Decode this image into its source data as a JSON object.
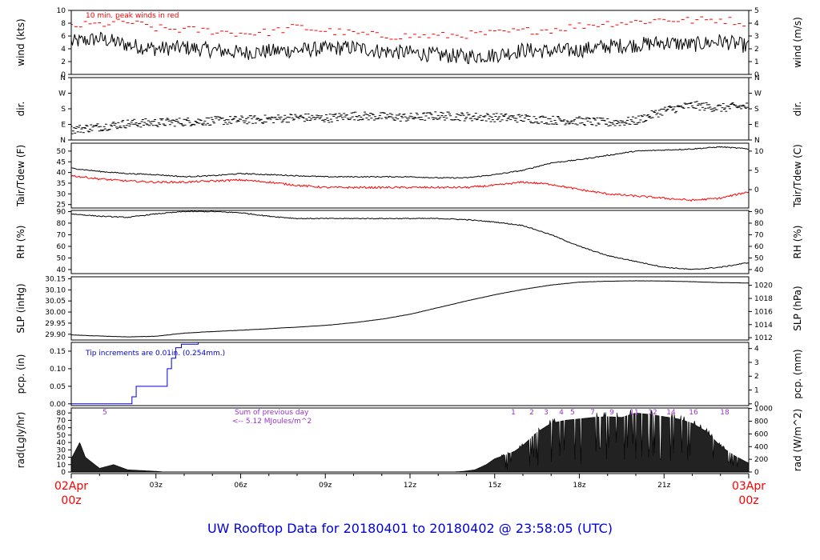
{
  "title": "UW Rooftop Data for 20180401  to  20180402 @ 23:58:05  (UTC)",
  "colors": {
    "data": "#000000",
    "peak": "#ff0000",
    "dewpoint": "#ff0000",
    "precip": "#0000dd",
    "annot_rad": "#9933cc",
    "axis_date": "#ff0000",
    "title": "#0000dd"
  },
  "x_axis": {
    "start_label": [
      "02Apr",
      "00z"
    ],
    "end_label": [
      "03Apr",
      "00z"
    ],
    "ticks": [
      "03z",
      "06z",
      "09z",
      "12z",
      "15z",
      "18z",
      "21z"
    ]
  },
  "chart_data": [
    {
      "type": "line",
      "ylabel_left": "wind (kts)",
      "ylabel_right": "wind (m/s)",
      "ylim": [
        0,
        10
      ],
      "yticks_left": [
        0,
        2,
        4,
        6,
        8,
        10
      ],
      "yticks_right": [
        0,
        1,
        2,
        3,
        4,
        5
      ],
      "annotation": "10 min. peak winds in red",
      "series": [
        {
          "x": [
            0,
            1,
            2,
            3,
            4,
            5,
            6,
            7,
            8,
            9,
            10,
            11,
            12,
            13,
            14,
            15,
            16,
            17,
            18,
            19,
            20,
            21,
            22,
            23,
            24
          ],
          "values": [
            5.0,
            5.6,
            4.6,
            4.0,
            4.2,
            3.8,
            3.4,
            3.6,
            3.8,
            4.0,
            4.2,
            3.6,
            3.4,
            3.0,
            2.8,
            3.0,
            3.8,
            3.6,
            3.8,
            4.4,
            4.6,
            5.0,
            4.6,
            5.2,
            4.4
          ]
        },
        {
          "x": [
            0,
            1,
            2,
            3,
            4,
            5,
            6,
            7,
            8,
            9,
            10,
            11,
            12,
            13,
            14,
            15,
            16,
            17,
            18,
            19,
            20,
            21,
            22,
            23,
            24
          ],
          "values": [
            7.6,
            7.8,
            8.2,
            7.2,
            7.0,
            6.8,
            6.4,
            6.6,
            7.4,
            6.8,
            6.4,
            6.0,
            6.0,
            6.0,
            6.2,
            6.4,
            6.8,
            7.0,
            7.6,
            8.0,
            8.2,
            8.6,
            8.4,
            8.6,
            8.0
          ]
        }
      ]
    },
    {
      "type": "scatter",
      "ylabel_left": "dir.",
      "ylabel_right": "dir.",
      "ylim": [
        0,
        360
      ],
      "yticks_left": [
        "N",
        "E",
        "S",
        "W",
        "N"
      ],
      "yticks_right": [
        "N",
        "E",
        "S",
        "W",
        "N"
      ],
      "series": [
        {
          "x": [
            0,
            1,
            2,
            3,
            4,
            5,
            6,
            7,
            8,
            9,
            10,
            11,
            12,
            13,
            14,
            15,
            16,
            17,
            18,
            19,
            20,
            21,
            22,
            23,
            24
          ],
          "values": [
            60,
            75,
            95,
            100,
            105,
            110,
            115,
            120,
            130,
            125,
            140,
            135,
            130,
            140,
            135,
            130,
            125,
            115,
            110,
            100,
            110,
            170,
            200,
            185,
            195
          ]
        }
      ]
    },
    {
      "type": "line",
      "ylabel_left": "Tair/Tdew (F)",
      "ylabel_right": "Tair/Tdew (C)",
      "ylim": [
        23.4,
        53.7
      ],
      "yticks_left": [
        25,
        30,
        35,
        40,
        45,
        50
      ],
      "yticks_right": [
        0,
        5,
        10
      ],
      "series": [
        {
          "x": [
            0,
            1,
            2,
            3,
            4,
            5,
            6,
            7,
            8,
            9,
            10,
            11,
            12,
            13,
            14,
            15,
            16,
            17,
            18,
            19,
            20,
            21,
            22,
            23,
            24
          ],
          "values": [
            42,
            40.5,
            39.5,
            39,
            38,
            38.5,
            39.5,
            39,
            38.5,
            38,
            38,
            38,
            38,
            37.5,
            37.5,
            39,
            41,
            44.5,
            46,
            48,
            50,
            50.5,
            51,
            52,
            51
          ]
        },
        {
          "x": [
            0,
            1,
            2,
            3,
            4,
            5,
            6,
            7,
            8,
            9,
            10,
            11,
            12,
            13,
            14,
            15,
            16,
            17,
            18,
            19,
            20,
            21,
            22,
            23,
            24
          ],
          "values": [
            38.5,
            37,
            36,
            35.5,
            35.5,
            36,
            36.5,
            35.5,
            34,
            33,
            33,
            33,
            33,
            33,
            33,
            34,
            35.5,
            34.5,
            32,
            30,
            29,
            28,
            27,
            28,
            31
          ]
        }
      ]
    },
    {
      "type": "line",
      "ylabel_left": "RH (%)",
      "ylabel_right": "RH (%)",
      "ylim": [
        36.5,
        91
      ],
      "yticks_left": [
        40,
        50,
        60,
        70,
        80,
        90
      ],
      "yticks_right": [
        40,
        50,
        60,
        70,
        80,
        90
      ],
      "series": [
        {
          "x": [
            0,
            1,
            2,
            3,
            4,
            5,
            6,
            7,
            8,
            9,
            10,
            11,
            12,
            13,
            14,
            15,
            16,
            17,
            18,
            19,
            20,
            21,
            22,
            23,
            24
          ],
          "values": [
            88,
            86,
            85,
            88,
            90,
            90,
            89,
            86,
            84,
            84,
            84,
            84,
            84,
            84,
            83,
            81,
            78,
            70,
            60,
            52,
            47,
            42,
            40,
            42,
            46
          ]
        }
      ]
    },
    {
      "type": "line",
      "ylabel_left": "SLP (inHg)",
      "ylabel_right": "SLP (hPa)",
      "ylim": [
        29.874,
        30.159
      ],
      "yticks_left": [
        "29.90",
        "29.95",
        "30.00",
        "30.05",
        "30.10",
        "30.15"
      ],
      "yticks_right": [
        1012,
        1014,
        1016,
        1018,
        1020
      ],
      "series": [
        {
          "x": [
            0,
            1,
            2,
            3,
            4,
            5,
            6,
            7,
            8,
            9,
            10,
            11,
            12,
            13,
            14,
            15,
            16,
            17,
            18,
            19,
            20,
            21,
            22,
            23,
            24
          ],
          "values": [
            29.897,
            29.892,
            29.888,
            29.891,
            29.905,
            29.912,
            29.918,
            29.925,
            29.932,
            29.94,
            29.952,
            29.968,
            29.99,
            30.02,
            30.05,
            30.078,
            30.102,
            30.122,
            30.135,
            30.139,
            30.141,
            30.14,
            30.137,
            30.133,
            30.131
          ]
        }
      ]
    },
    {
      "type": "line",
      "ylabel_left": "pcp. (in)",
      "ylabel_right": "pcp. (mm)",
      "ylim": [
        -0.005,
        0.175
      ],
      "yticks_left": [
        "0.00",
        "0.05",
        "0.10",
        "0.15"
      ],
      "yticks_right": [
        0,
        1,
        2,
        3,
        4
      ],
      "annotation": "Tip increments are 0.01in. (0.254mm.)",
      "series": [
        {
          "x": [
            0,
            2.0,
            2.15,
            2.3,
            3.3,
            3.4,
            3.55,
            3.7,
            3.9,
            4.5,
            24
          ],
          "values": [
            0,
            0,
            0.02,
            0.05,
            0.05,
            0.1,
            0.13,
            0.16,
            0.17,
            0.18,
            0.18
          ]
        }
      ]
    },
    {
      "type": "area",
      "ylabel_left": "rad(Lgly/hr)",
      "ylabel_right": "rad (W/m^2)",
      "ylim": [
        0,
        86.7
      ],
      "yticks_left": [
        0,
        10,
        20,
        30,
        40,
        50,
        60,
        70,
        80
      ],
      "yticks_right": [
        0,
        200,
        400,
        600,
        800,
        1000
      ],
      "sum_label": [
        "Sum of previous day",
        "<-- 5.12 MJoules/m^2"
      ],
      "hour_labels": [
        "5",
        "1",
        "2",
        "3",
        "4",
        "5",
        "7",
        "9",
        "11",
        "12",
        "14",
        "16",
        "18"
      ],
      "series": [
        {
          "x": [
            0,
            0.3,
            0.5,
            1.0,
            1.5,
            2.0,
            2.5,
            3.0,
            3.3,
            13.5,
            13.9,
            14.3,
            14.7,
            15.0,
            15.3,
            15.7,
            16.0,
            16.5,
            17.0,
            17.5,
            18.0,
            18.5,
            19.0,
            19.5,
            20.0,
            20.5,
            21.0,
            21.5,
            22.0,
            22.5,
            23.0,
            23.5,
            24.0
          ],
          "values": [
            18,
            40,
            20,
            5,
            10,
            3,
            2,
            1,
            0,
            0,
            1,
            3,
            10,
            18,
            22,
            28,
            36,
            54,
            66,
            70,
            72,
            74,
            75,
            74,
            80,
            78,
            75,
            72,
            66,
            55,
            35,
            22,
            12
          ]
        }
      ]
    }
  ]
}
